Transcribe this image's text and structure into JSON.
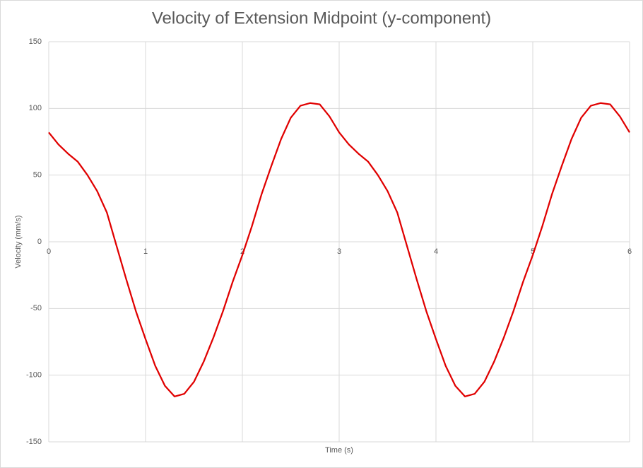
{
  "chart_data": {
    "type": "line",
    "title": "Velocity of Extension Midpoint (y-component)",
    "x_label": "Time (s)",
    "y_label": "Velocity (mm/s)",
    "x": [
      0,
      0.1,
      0.2,
      0.3,
      0.4,
      0.5,
      0.6,
      0.7,
      0.8,
      0.9,
      1,
      1.1,
      1.2,
      1.3,
      1.4,
      1.5,
      1.6,
      1.7,
      1.8,
      1.9,
      2,
      2.1,
      2.2,
      2.3,
      2.4,
      2.5,
      2.6,
      2.7,
      2.8,
      2.9,
      3,
      3.1,
      3.2,
      3.3,
      3.4,
      3.5,
      3.6,
      3.7,
      3.8,
      3.9,
      4,
      4.1,
      4.2,
      4.3,
      4.4,
      4.5,
      4.6,
      4.7,
      4.8,
      4.9,
      5,
      5.1,
      5.2,
      5.3,
      5.4,
      5.5,
      5.6,
      5.7,
      5.8,
      5.9,
      6
    ],
    "series": [
      {
        "name": "Velocity",
        "color": "#e00000",
        "values": [
          82,
          73,
          66,
          60,
          50,
          38,
          22,
          -3,
          -28,
          -52,
          -73,
          -93,
          -108,
          -116,
          -114,
          -105,
          -90,
          -72,
          -52,
          -30,
          -10,
          12,
          36,
          57,
          77,
          93,
          102,
          104,
          103,
          94,
          82,
          73,
          66,
          60,
          50,
          38,
          22,
          -3,
          -28,
          -52,
          -73,
          -93,
          -108,
          -116,
          -114,
          -105,
          -90,
          -72,
          -52,
          -30,
          -10,
          12,
          36,
          57,
          77,
          93,
          102,
          104,
          103,
          94,
          82
        ]
      }
    ],
    "xlim": [
      0,
      6
    ],
    "xticks": [
      0,
      1,
      2,
      3,
      4,
      5,
      6
    ],
    "ylim": [
      -150,
      150
    ],
    "yticks": [
      -150,
      -100,
      -50,
      0,
      50,
      100,
      150
    ],
    "grid": true
  }
}
